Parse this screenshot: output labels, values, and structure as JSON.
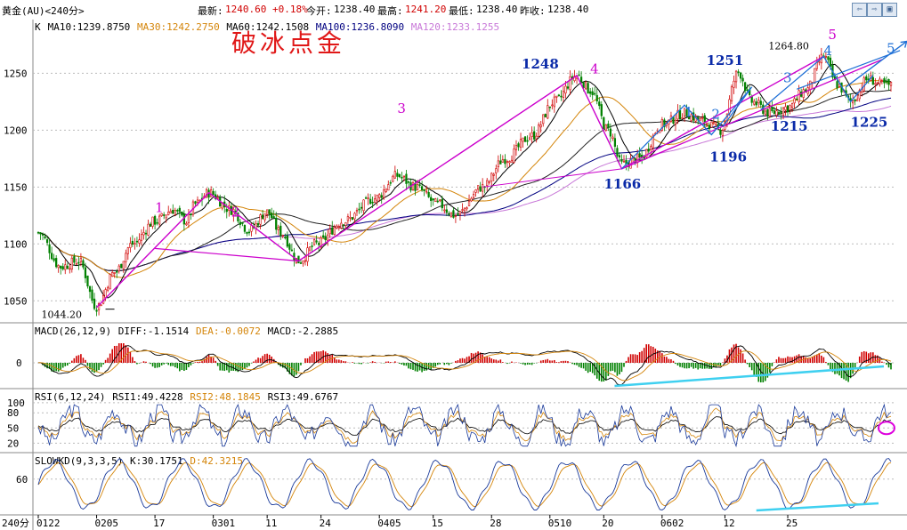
{
  "header": {
    "title": "黄金(AU)<240分>",
    "latest_label": "最新:",
    "latest_value": "1240.60 +0.18%",
    "open_label": "今开:",
    "open_value": "1238.40",
    "high_label": "最高:",
    "high_value": "1241.20",
    "low_label": "最低:",
    "low_value": "1238.40",
    "prev_label": "昨收:",
    "prev_value": "1238.40",
    "nav_icons": [
      "arrow-left-icon",
      "arrow-right-icon",
      "window-icon"
    ]
  },
  "ma_legend": [
    {
      "text": "K",
      "color": "#000000"
    },
    {
      "text": "MA10:1239.8750",
      "color": "#000000"
    },
    {
      "text": "MA30:1242.2750",
      "color": "#d4850a"
    },
    {
      "text": "MA60:1242.1508",
      "color": "#000000"
    },
    {
      "text": "MA100:1236.8090",
      "color": "#000080"
    },
    {
      "text": "MA120:1233.1255",
      "color": "#c878d8"
    }
  ],
  "watermark": "破冰点金",
  "macd_legend": [
    {
      "text": "MACD(26,12,9)",
      "color": "#000000"
    },
    {
      "text": "DIFF:-1.1514",
      "color": "#000000"
    },
    {
      "text": "DEA:-0.0072",
      "color": "#d4850a"
    },
    {
      "text": "MACD:-2.2885",
      "color": "#000000"
    }
  ],
  "rsi_legend": [
    {
      "text": "RSI(6,12,24)",
      "color": "#000000"
    },
    {
      "text": "RSI1:49.4228",
      "color": "#000000"
    },
    {
      "text": "RSI2:48.1845",
      "color": "#d4850a"
    },
    {
      "text": "RSI3:49.6767",
      "color": "#000000"
    }
  ],
  "kd_legend": [
    {
      "text": "SLOWKD(9,3,3,5)",
      "color": "#000000"
    },
    {
      "text": "K:30.1751",
      "color": "#000000"
    },
    {
      "text": "D:42.3215",
      "color": "#d4850a"
    }
  ],
  "period_label": "240分",
  "colors": {
    "up": "#d00000",
    "down": "#008000",
    "ma10": "#000000",
    "ma30": "#d4850a",
    "ma60": "#222222",
    "ma100": "#000080",
    "ma120": "#c878d8",
    "magenta": "#cc00cc",
    "blue_wave": "#1e6fd6",
    "cyan": "#3fd0f0",
    "label_blue": "#0a2aa8"
  },
  "chart_data": [
    {
      "type": "candlestick",
      "title": "黄金(AU)<240分>",
      "y_ticks": [
        1050,
        1100,
        1150,
        1200,
        1250
      ],
      "ylim": [
        1033,
        1280
      ],
      "x_tick_labels": [
        "0122",
        "0205",
        "17",
        "0301",
        "11",
        "24",
        "0405",
        "15",
        "28",
        "0510",
        "20",
        "0602",
        "12",
        "25"
      ],
      "anchor_path": [
        [
          0,
          1110
        ],
        [
          10,
          1080
        ],
        [
          18,
          1085
        ],
        [
          26,
          1045
        ],
        [
          34,
          1075
        ],
        [
          42,
          1100
        ],
        [
          52,
          1120
        ],
        [
          60,
          1130
        ],
        [
          66,
          1120
        ],
        [
          70,
          1135
        ],
        [
          76,
          1145
        ],
        [
          86,
          1130
        ],
        [
          94,
          1112
        ],
        [
          102,
          1128
        ],
        [
          108,
          1110
        ],
        [
          116,
          1085
        ],
        [
          124,
          1100
        ],
        [
          136,
          1120
        ],
        [
          150,
          1140
        ],
        [
          160,
          1160
        ],
        [
          168,
          1150
        ],
        [
          178,
          1135
        ],
        [
          186,
          1125
        ],
        [
          198,
          1150
        ],
        [
          208,
          1175
        ],
        [
          220,
          1195
        ],
        [
          230,
          1225
        ],
        [
          240,
          1248
        ],
        [
          246,
          1235
        ],
        [
          254,
          1200
        ],
        [
          260,
          1170
        ],
        [
          268,
          1175
        ],
        [
          278,
          1205
        ],
        [
          288,
          1215
        ],
        [
          296,
          1208
        ],
        [
          304,
          1200
        ],
        [
          312,
          1251
        ],
        [
          318,
          1225
        ],
        [
          326,
          1215
        ],
        [
          334,
          1220
        ],
        [
          342,
          1235
        ],
        [
          350,
          1264.8
        ],
        [
          356,
          1240
        ],
        [
          362,
          1225
        ],
        [
          370,
          1245
        ],
        [
          376,
          1240
        ],
        [
          380,
          1239
        ]
      ],
      "price_labels": [
        {
          "text": "1044.20",
          "value": 1044.2,
          "color": "#000000"
        },
        {
          "text": "1248",
          "value": 1248,
          "color": "#0a2aa8"
        },
        {
          "text": "1166",
          "value": 1166,
          "color": "#0a2aa8"
        },
        {
          "text": "1251",
          "value": 1251,
          "color": "#0a2aa8"
        },
        {
          "text": "1196",
          "value": 1196,
          "color": "#0a2aa8"
        },
        {
          "text": "1215",
          "value": 1215,
          "color": "#0a2aa8"
        },
        {
          "text": "1225",
          "value": 1225,
          "color": "#0a2aa8"
        },
        {
          "text": "1264.80",
          "value": 1264.8,
          "color": "#000000"
        }
      ],
      "wave_labels": [
        {
          "text": "1",
          "color": "#cc00cc"
        },
        {
          "text": "2",
          "color": "#cc00cc"
        },
        {
          "text": "3",
          "color": "#cc00cc"
        },
        {
          "text": "4",
          "color": "#cc00cc"
        },
        {
          "text": "5",
          "color": "#cc00cc"
        },
        {
          "text": "1",
          "color": "#1e6fd6"
        },
        {
          "text": "2",
          "color": "#1e6fd6"
        },
        {
          "text": "3",
          "color": "#1e6fd6"
        },
        {
          "text": "4",
          "color": "#1e6fd6"
        },
        {
          "text": "5",
          "color": "#1e6fd6"
        }
      ],
      "legend": [
        "K",
        "MA10",
        "MA30",
        "MA60",
        "MA100",
        "MA120"
      ]
    },
    {
      "type": "bar",
      "title": "MACD(26,12,9)",
      "y_ticks": [
        0
      ],
      "series": [
        {
          "name": "DIFF",
          "last": -1.1514
        },
        {
          "name": "DEA",
          "last": -0.0072
        },
        {
          "name": "MACD",
          "last": -2.2885
        }
      ]
    },
    {
      "type": "line",
      "title": "RSI(6,12,24)",
      "y_ticks": [
        20,
        50,
        80,
        100
      ],
      "ylim": [
        10,
        105
      ],
      "series": [
        {
          "name": "RSI1",
          "last": 49.4228
        },
        {
          "name": "RSI2",
          "last": 48.1845
        },
        {
          "name": "RSI3",
          "last": 49.6767
        }
      ]
    },
    {
      "type": "line",
      "title": "SLOWKD(9,3,3,5)",
      "y_ticks": [
        60
      ],
      "ylim": [
        0,
        100
      ],
      "series": [
        {
          "name": "K",
          "last": 30.1751
        },
        {
          "name": "D",
          "last": 42.3215
        }
      ]
    }
  ]
}
